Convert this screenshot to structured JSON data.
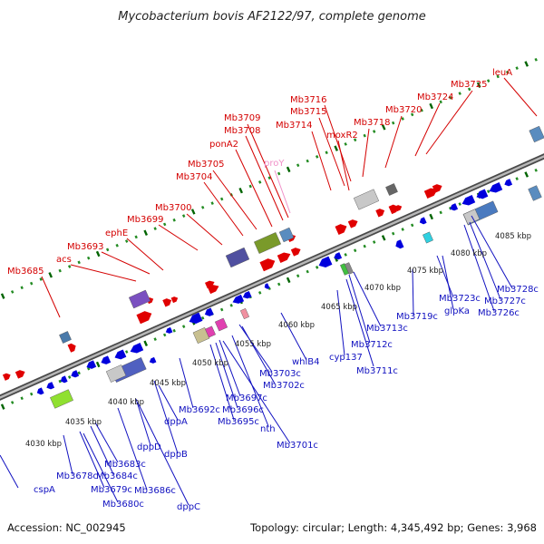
{
  "title": "Mycobacterium bovis AF2122/97, complete genome",
  "footer": {
    "accession": "Accession: NC_002945",
    "summary": "Topology: circular; Length: 4,345,492 bp; Genes: 3,968"
  },
  "colors": {
    "forward": "#e00000",
    "reverse": "#0000dd",
    "rna": "#f090c8",
    "forward_label": "#d40000",
    "reverse_label": "#1010c0",
    "tick_major": "#006400",
    "tick_minor": "#228b22",
    "backbone": "#777777"
  },
  "forward_labels": [
    "leuA",
    "Mb3725",
    "Mb3724",
    "Mb3720",
    "Mb3718",
    "Mb3716",
    "Mb3715",
    "Mb3714",
    "moxR2",
    "Mb3709",
    "Mb3708",
    "ponA2",
    "proY",
    "Mb3705",
    "Mb3704",
    "Mb3700",
    "Mb3699",
    "ephE",
    "Mb3693",
    "acs",
    "Mb3685"
  ],
  "reverse_labels": [
    "Mb3728c",
    "Mb3727c",
    "Mb3726c",
    "Mb3723c",
    "glpKa",
    "Mb3719c",
    "Mb3713c",
    "Mb3712c",
    "Mb3711c",
    "cyp137",
    "whiB4",
    "Mb3703c",
    "Mb3702c",
    "Mb3697c",
    "Mb3696c",
    "Mb3695c",
    "nth",
    "Mb3701c",
    "Mb3692c",
    "dppA",
    "dppB",
    "dppD",
    "dppC",
    "Mb3686c",
    "Mb3684c",
    "Mb3683c",
    "Mb3678c",
    "Mb3679c",
    "Mb3680c",
    "cspA"
  ],
  "scale_labels": [
    "4085 kbp",
    "4080 kbp",
    "4075 kbp",
    "4070 kbp",
    "4065 kbp",
    "4060 kbp",
    "4055 kbp",
    "4050 kbp",
    "4045 kbp",
    "4040 kbp",
    "4035 kbp",
    "4030 kbp"
  ]
}
